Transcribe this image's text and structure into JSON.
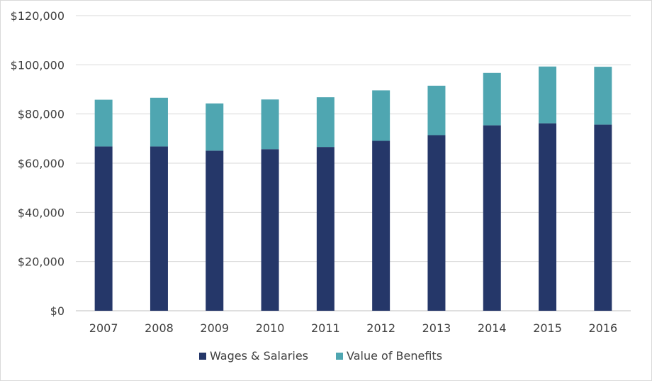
{
  "chart_data": {
    "type": "bar",
    "stacked": true,
    "title": "",
    "xlabel": "",
    "ylabel": "",
    "categories": [
      "2007",
      "2008",
      "2009",
      "2010",
      "2011",
      "2012",
      "2013",
      "2014",
      "2015",
      "2016"
    ],
    "series": [
      {
        "name": "Wages & Salaries",
        "color": "#253769",
        "values": [
          66800,
          66800,
          65100,
          65700,
          66600,
          69100,
          71400,
          75400,
          76200,
          75700
        ]
      },
      {
        "name": "Value of Benefits",
        "color": "#4fa6b1",
        "values": [
          19000,
          19800,
          19200,
          20200,
          20200,
          20500,
          20100,
          21300,
          23100,
          23500
        ]
      }
    ],
    "ylim": [
      0,
      120000
    ],
    "yticks": [
      "$0",
      "$20,000",
      "$40,000",
      "$60,000",
      "$80,000",
      "$100,000",
      "$120,000"
    ],
    "ytick_values": [
      0,
      20000,
      40000,
      60000,
      80000,
      100000,
      120000
    ],
    "grid": true,
    "legend_position": "bottom"
  }
}
